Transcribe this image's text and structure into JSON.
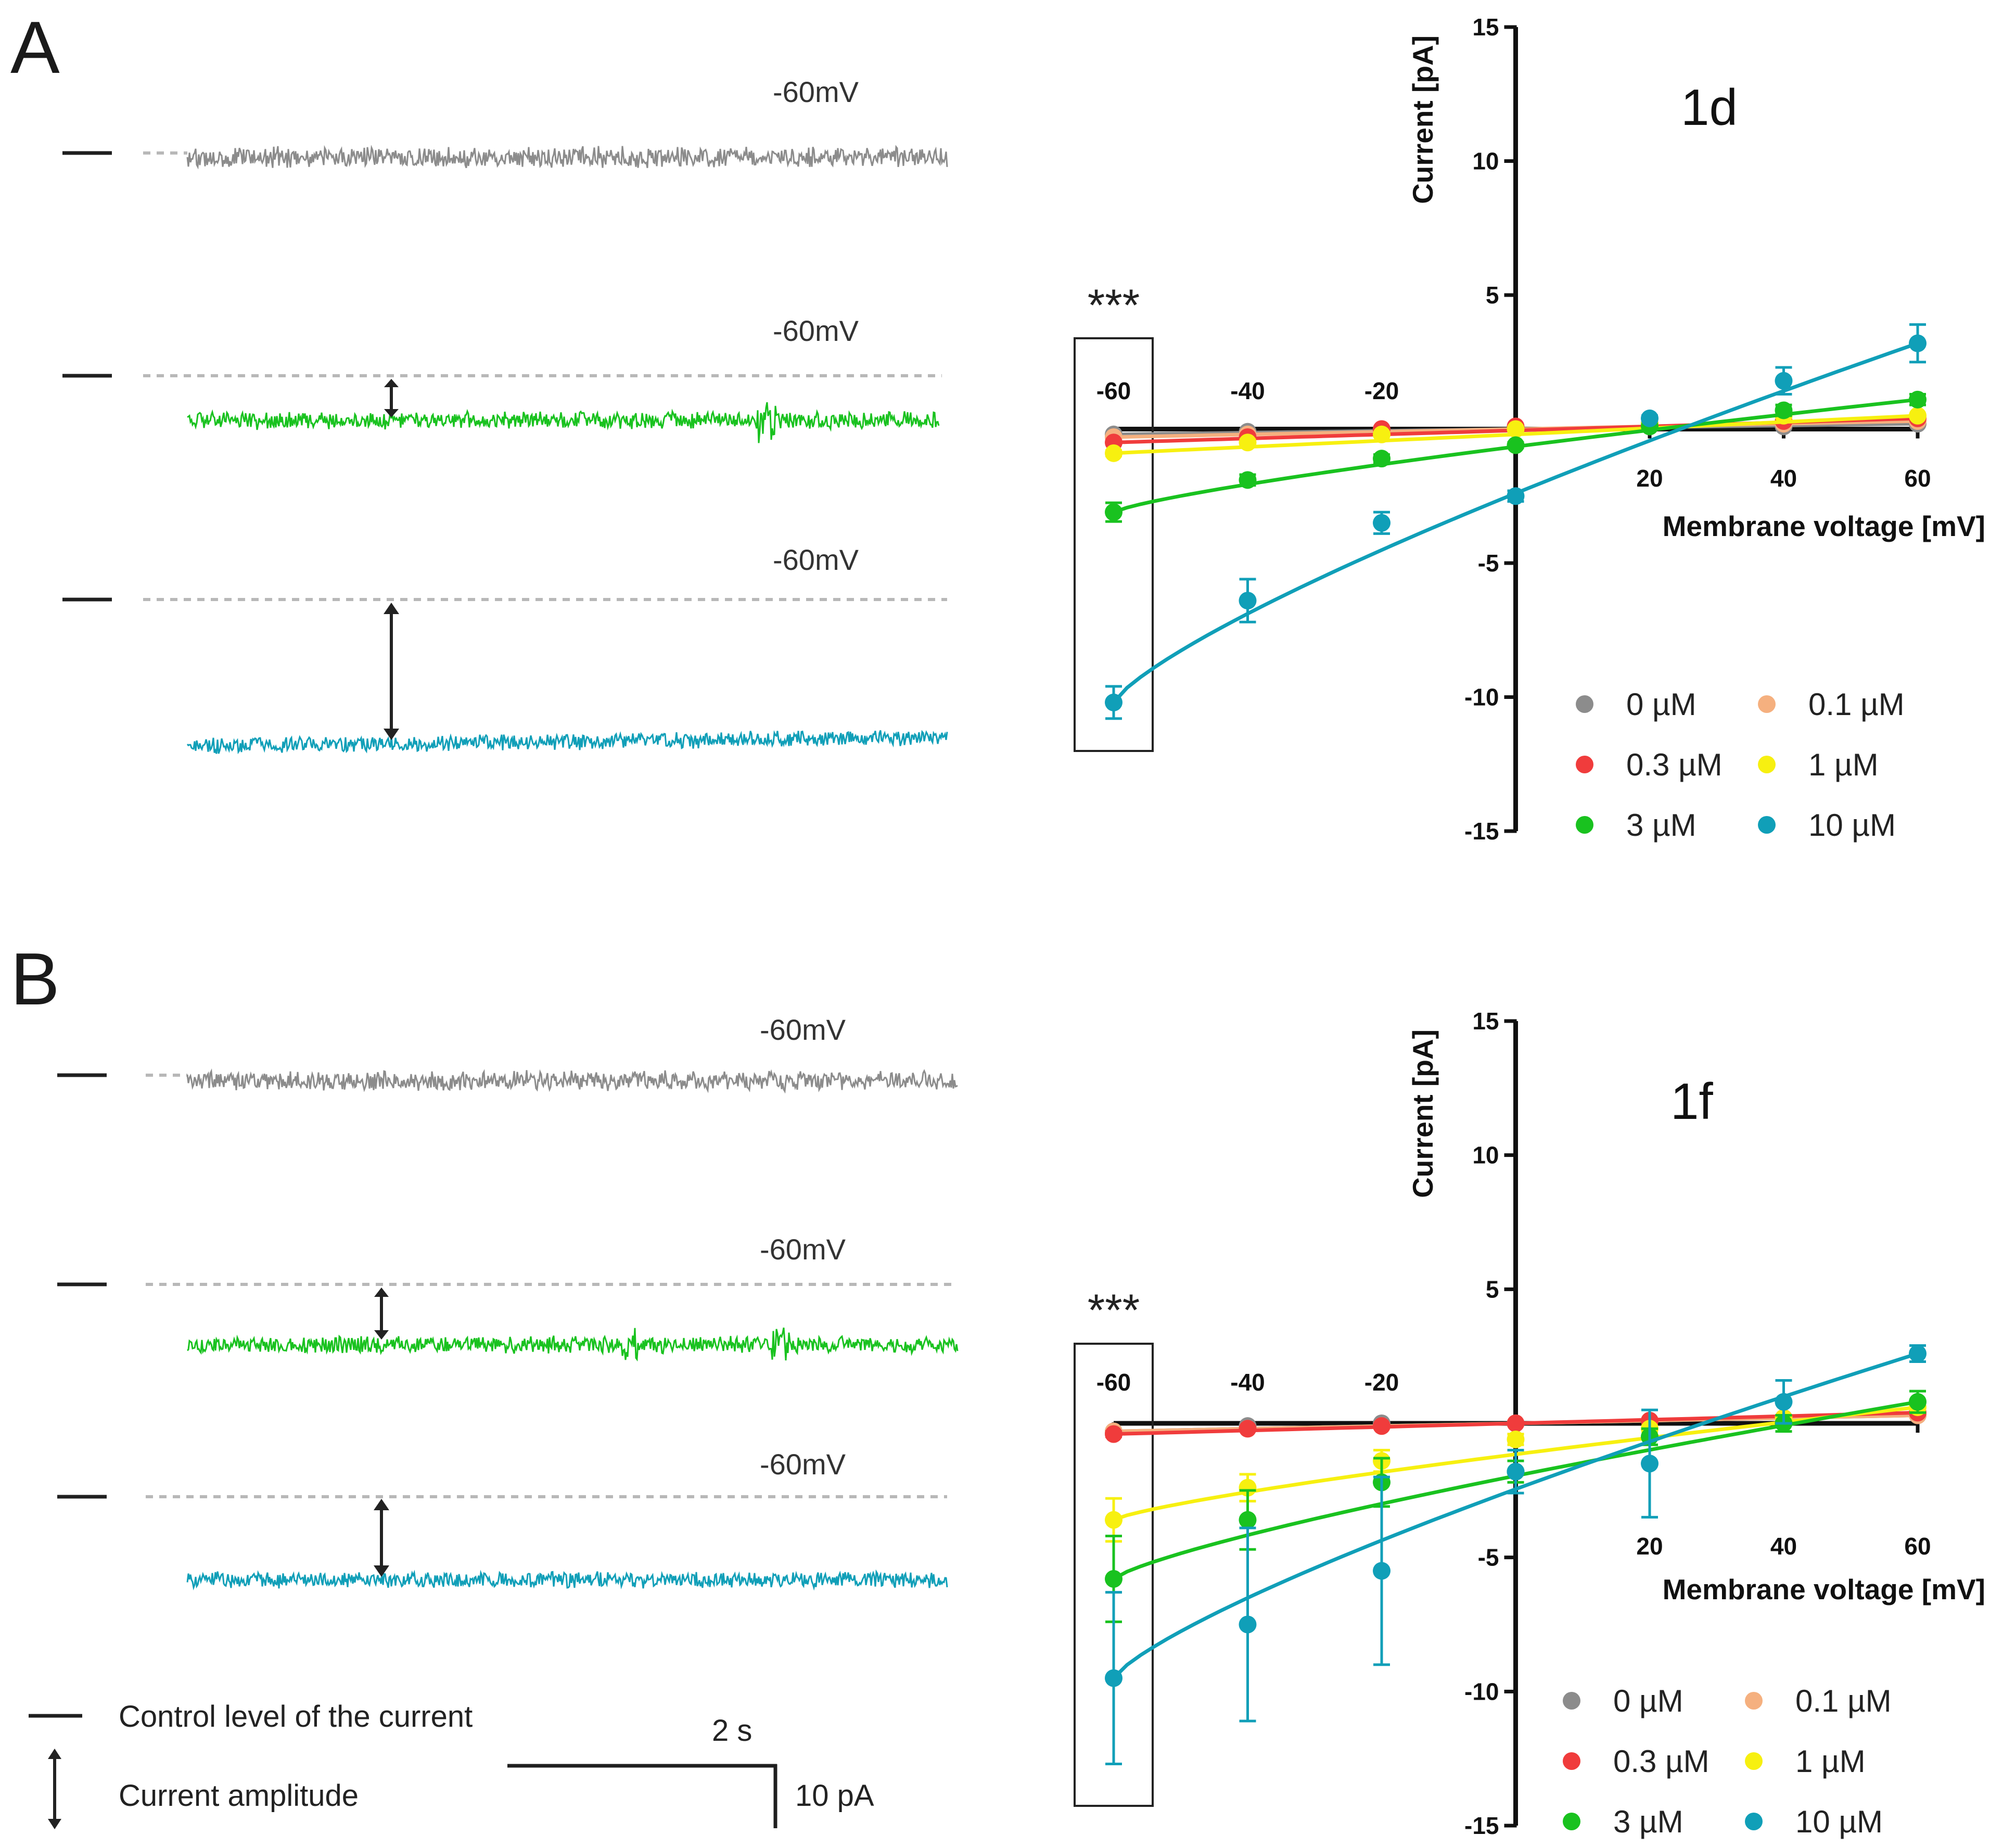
{
  "panels": [
    {
      "letter": "A",
      "traces": [
        {
          "voltage_label": "-60mV",
          "color": "#8c8c8c",
          "amplitude_pA": 0,
          "shows_amplitude": false,
          "spikes": []
        },
        {
          "voltage_label": "-60mV",
          "color": "#19c21f",
          "amplitude_pA": 1.2,
          "shows_amplitude": true,
          "spikes": [
            0.85
          ]
        },
        {
          "voltage_label": "-60mV",
          "color": "#109fb8",
          "amplitude_pA": 10.2,
          "shows_amplitude": true,
          "spikes": []
        }
      ]
    },
    {
      "letter": "B",
      "traces": [
        {
          "voltage_label": "-60mV",
          "color": "#8c8c8c",
          "amplitude_pA": 0,
          "shows_amplitude": false,
          "spikes": []
        },
        {
          "voltage_label": "-60mV",
          "color": "#19c21f",
          "amplitude_pA": 4.4,
          "shows_amplitude": true,
          "spikes": [
            0.63,
            0.84
          ]
        },
        {
          "voltage_label": "-60mV",
          "color": "#109fb8",
          "amplitude_pA": 6.0,
          "shows_amplitude": true,
          "spikes": []
        }
      ]
    }
  ],
  "trace_legend": {
    "control_label": "Control level of the current",
    "amplitude_label": "Current amplitude"
  },
  "scale_bar": {
    "time_label": "2 s",
    "current_label": "10 pA"
  },
  "chart_data": [
    {
      "type": "scatter",
      "title": "1d",
      "xlabel": "Membrane voltage [mV]",
      "ylabel": "Current [pA]",
      "xlim": [
        -60,
        60
      ],
      "ylim": [
        -15,
        15
      ],
      "xticks": [
        -60,
        -40,
        -20,
        20,
        40,
        60
      ],
      "yticks": [
        -15,
        -10,
        -5,
        5,
        10,
        15
      ],
      "significance": "***",
      "highlight_x": -60,
      "x": [
        -60,
        -40,
        -20,
        0,
        20,
        40,
        60
      ],
      "series": [
        {
          "name": "0 µM",
          "color": "#8c8c8c",
          "values": [
            -0.2,
            -0.1,
            0.0,
            0.0,
            0.1,
            0.1,
            0.2
          ],
          "errors": [
            0,
            0,
            0,
            0,
            0,
            0,
            0
          ],
          "fit": [
            -0.2,
            0.2
          ]
        },
        {
          "name": "0.1 µM",
          "color": "#f5b07f",
          "values": [
            -0.3,
            -0.2,
            -0.1,
            0.0,
            0.1,
            0.2,
            0.3
          ],
          "errors": [
            0,
            0,
            0,
            0,
            0,
            0,
            0
          ],
          "fit": [
            -0.3,
            0.3
          ]
        },
        {
          "name": "0.3 µM",
          "color": "#f03c3c",
          "values": [
            -0.5,
            -0.3,
            0.0,
            0.1,
            0.2,
            0.3,
            0.4
          ],
          "errors": [
            0,
            0,
            0,
            0,
            0,
            0,
            0
          ],
          "fit": [
            -0.5,
            0.4
          ]
        },
        {
          "name": "1 µM",
          "color": "#f7f010",
          "values": [
            -0.9,
            -0.5,
            -0.2,
            0.0,
            0.2,
            0.5,
            0.5
          ],
          "errors": [
            0.1,
            0.1,
            0,
            0,
            0,
            0,
            0
          ],
          "fit": [
            -0.9,
            0.5
          ]
        },
        {
          "name": "3 µM",
          "color": "#19c21f",
          "values": [
            -3.1,
            -1.9,
            -1.1,
            -0.6,
            0.1,
            0.7,
            1.1
          ],
          "errors": [
            0.35,
            0.2,
            0.15,
            0.1,
            0.05,
            0.2,
            0.2
          ],
          "fit": [
            -3.1,
            1.1
          ]
        },
        {
          "name": "10 µM",
          "color": "#109fb8",
          "values": [
            -10.2,
            -6.4,
            -3.5,
            -2.5,
            0.4,
            1.8,
            3.2
          ],
          "errors": [
            0.6,
            0.8,
            0.4,
            0.2,
            0.1,
            0.5,
            0.7
          ],
          "fit": [
            -10.2,
            3.2
          ]
        }
      ]
    },
    {
      "type": "scatter",
      "title": "1f",
      "xlabel": "Membrane voltage [mV]",
      "ylabel": "Current [pA]",
      "xlim": [
        -60,
        60
      ],
      "ylim": [
        -15,
        15
      ],
      "xticks": [
        -60,
        -40,
        -20,
        20,
        40,
        60
      ],
      "yticks": [
        -15,
        -10,
        -5,
        5,
        10,
        15
      ],
      "significance": "***",
      "highlight_x": -60,
      "x": [
        -60,
        -40,
        -20,
        0,
        20,
        40,
        60
      ],
      "series": [
        {
          "name": "0 µM",
          "color": "#8c8c8c",
          "values": [
            -0.3,
            -0.1,
            0.0,
            0.0,
            0.1,
            0.2,
            0.3
          ],
          "errors": [
            0,
            0,
            0,
            0,
            0,
            0,
            0
          ],
          "fit": [
            -0.3,
            0.3
          ]
        },
        {
          "name": "0.1 µM",
          "color": "#f5b07f",
          "values": [
            -0.3,
            -0.2,
            -0.1,
            0.0,
            0.1,
            0.2,
            0.3
          ],
          "errors": [
            0,
            0,
            0,
            0,
            0,
            0,
            0
          ],
          "fit": [
            -0.3,
            0.3
          ]
        },
        {
          "name": "0.3 µM",
          "color": "#f03c3c",
          "values": [
            -0.4,
            -0.2,
            -0.1,
            0.0,
            0.1,
            0.2,
            0.4
          ],
          "errors": [
            0.1,
            0,
            0,
            0,
            0,
            0,
            0
          ],
          "fit": [
            -0.4,
            0.4
          ]
        },
        {
          "name": "1 µM",
          "color": "#f7f010",
          "values": [
            -3.6,
            -2.4,
            -1.4,
            -0.6,
            -0.2,
            0.2,
            0.6
          ],
          "errors": [
            0.8,
            0.5,
            0.4,
            0.2,
            0.1,
            0.1,
            0.2
          ],
          "fit": [
            -3.6,
            0.6
          ]
        },
        {
          "name": "3 µM",
          "color": "#19c21f",
          "values": [
            -5.8,
            -3.6,
            -2.2,
            -1.8,
            -0.5,
            0.0,
            0.8
          ],
          "errors": [
            1.6,
            1.1,
            0.9,
            0.4,
            0.3,
            0.3,
            0.4
          ],
          "fit": [
            -5.8,
            0.8
          ]
        },
        {
          "name": "10 µM",
          "color": "#109fb8",
          "values": [
            -9.5,
            -7.5,
            -5.5,
            -1.8,
            -1.5,
            0.8,
            2.6
          ],
          "errors": [
            3.2,
            3.6,
            3.5,
            0.8,
            2.0,
            0.8,
            0.3
          ],
          "fit": [
            -9.5,
            2.6
          ]
        }
      ]
    }
  ]
}
